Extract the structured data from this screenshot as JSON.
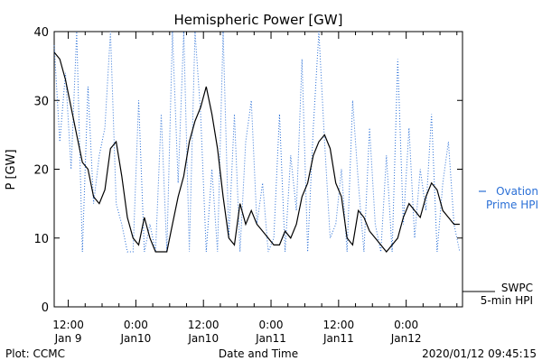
{
  "chart_data": {
    "type": "line",
    "title": "Hemispheric Power [GW]",
    "ylabel": "P [GW]",
    "xlabel": "Date and Time",
    "ylim": [
      0,
      40
    ],
    "yticks": [
      0,
      10,
      20,
      30,
      40
    ],
    "xlim": [
      "2020-01-09 09:30",
      "2020-01-12 10:00"
    ],
    "xticks": [
      {
        "t": "2020-01-09 12:00",
        "line1": "12:00",
        "line2": "Jan 9"
      },
      {
        "t": "2020-01-10 00:00",
        "line1": "0:00",
        "line2": "Jan10"
      },
      {
        "t": "2020-01-10 12:00",
        "line1": "12:00",
        "line2": "Jan10"
      },
      {
        "t": "2020-01-11 00:00",
        "line1": "0:00",
        "line2": "Jan11"
      },
      {
        "t": "2020-01-11 12:00",
        "line1": "12:00",
        "line2": "Jan11"
      },
      {
        "t": "2020-01-12 00:00",
        "line1": "0:00",
        "line2": "Jan12"
      }
    ],
    "grid": false,
    "legend_position": "right",
    "series": [
      {
        "name": "Ovation Prime HPI",
        "legend_lines": [
          "Ovation",
          "Prime HPI"
        ],
        "style": "dotted",
        "color": "#2a6fd6",
        "x": [
          "2020-01-09 09:30",
          "2020-01-09 10:30",
          "2020-01-09 11:30",
          "2020-01-09 12:30",
          "2020-01-09 13:30",
          "2020-01-09 14:30",
          "2020-01-09 15:30",
          "2020-01-09 16:30",
          "2020-01-09 17:30",
          "2020-01-09 18:30",
          "2020-01-09 19:30",
          "2020-01-09 20:30",
          "2020-01-09 21:30",
          "2020-01-09 22:30",
          "2020-01-09 23:30",
          "2020-01-10 00:30",
          "2020-01-10 01:30",
          "2020-01-10 02:30",
          "2020-01-10 03:30",
          "2020-01-10 04:30",
          "2020-01-10 05:30",
          "2020-01-10 06:30",
          "2020-01-10 07:30",
          "2020-01-10 08:30",
          "2020-01-10 09:30",
          "2020-01-10 10:30",
          "2020-01-10 11:30",
          "2020-01-10 12:30",
          "2020-01-10 13:30",
          "2020-01-10 14:30",
          "2020-01-10 15:30",
          "2020-01-10 16:30",
          "2020-01-10 17:30",
          "2020-01-10 18:30",
          "2020-01-10 19:30",
          "2020-01-10 20:30",
          "2020-01-10 21:30",
          "2020-01-10 22:30",
          "2020-01-10 23:30",
          "2020-01-11 00:30",
          "2020-01-11 01:30",
          "2020-01-11 02:30",
          "2020-01-11 03:30",
          "2020-01-11 04:30",
          "2020-01-11 05:30",
          "2020-01-11 06:30",
          "2020-01-11 07:30",
          "2020-01-11 08:30",
          "2020-01-11 09:30",
          "2020-01-11 10:30",
          "2020-01-11 11:30",
          "2020-01-11 12:30",
          "2020-01-11 13:30",
          "2020-01-11 14:30",
          "2020-01-11 15:30",
          "2020-01-11 16:30",
          "2020-01-11 17:30",
          "2020-01-11 18:30",
          "2020-01-11 19:30",
          "2020-01-11 20:30",
          "2020-01-11 21:30",
          "2020-01-11 22:30",
          "2020-01-11 23:30",
          "2020-01-12 00:30",
          "2020-01-12 01:30",
          "2020-01-12 02:30",
          "2020-01-12 03:30",
          "2020-01-12 04:30",
          "2020-01-12 05:30",
          "2020-01-12 06:30",
          "2020-01-12 07:30",
          "2020-01-12 08:30",
          "2020-01-12 09:30"
        ],
        "values": [
          38,
          24,
          34,
          20,
          40,
          8,
          32,
          15,
          22,
          26,
          40,
          15,
          12,
          8,
          8,
          30,
          8,
          12,
          8,
          28,
          8,
          40,
          18,
          40,
          8,
          40,
          28,
          8,
          20,
          8,
          40,
          10,
          28,
          8,
          24,
          30,
          12,
          18,
          8,
          10,
          28,
          8,
          22,
          14,
          36,
          8,
          26,
          40,
          24,
          10,
          12,
          20,
          8,
          30,
          18,
          8,
          26,
          12,
          8,
          22,
          8,
          36,
          12,
          26,
          10,
          20,
          14,
          28,
          8,
          18,
          24,
          12,
          8
        ]
      },
      {
        "name": "SWPC 5-min HPI",
        "legend_lines": [
          "SWPC",
          "5-min HPI"
        ],
        "style": "solid",
        "color": "#000000",
        "x": [
          "2020-01-09 09:30",
          "2020-01-09 10:30",
          "2020-01-09 11:30",
          "2020-01-09 12:30",
          "2020-01-09 13:30",
          "2020-01-09 14:30",
          "2020-01-09 15:30",
          "2020-01-09 16:30",
          "2020-01-09 17:30",
          "2020-01-09 18:30",
          "2020-01-09 19:30",
          "2020-01-09 20:30",
          "2020-01-09 21:30",
          "2020-01-09 22:30",
          "2020-01-09 23:30",
          "2020-01-10 00:30",
          "2020-01-10 01:30",
          "2020-01-10 02:30",
          "2020-01-10 03:30",
          "2020-01-10 04:30",
          "2020-01-10 05:30",
          "2020-01-10 06:30",
          "2020-01-10 07:30",
          "2020-01-10 08:30",
          "2020-01-10 09:30",
          "2020-01-10 10:30",
          "2020-01-10 11:30",
          "2020-01-10 12:30",
          "2020-01-10 13:30",
          "2020-01-10 14:30",
          "2020-01-10 15:30",
          "2020-01-10 16:30",
          "2020-01-10 17:30",
          "2020-01-10 18:30",
          "2020-01-10 19:30",
          "2020-01-10 20:30",
          "2020-01-10 21:30",
          "2020-01-10 22:30",
          "2020-01-10 23:30",
          "2020-01-11 00:30",
          "2020-01-11 01:30",
          "2020-01-11 02:30",
          "2020-01-11 03:30",
          "2020-01-11 04:30",
          "2020-01-11 05:30",
          "2020-01-11 06:30",
          "2020-01-11 07:30",
          "2020-01-11 08:30",
          "2020-01-11 09:30",
          "2020-01-11 10:30",
          "2020-01-11 11:30",
          "2020-01-11 12:30",
          "2020-01-11 13:30",
          "2020-01-11 14:30",
          "2020-01-11 15:30",
          "2020-01-11 16:30",
          "2020-01-11 17:30",
          "2020-01-11 18:30",
          "2020-01-11 19:30",
          "2020-01-11 20:30",
          "2020-01-11 21:30",
          "2020-01-11 22:30",
          "2020-01-11 23:30",
          "2020-01-12 00:30",
          "2020-01-12 01:30",
          "2020-01-12 02:30",
          "2020-01-12 03:30",
          "2020-01-12 04:30",
          "2020-01-12 05:30",
          "2020-01-12 06:30",
          "2020-01-12 07:30",
          "2020-01-12 08:30",
          "2020-01-12 09:30"
        ],
        "values": [
          37,
          36,
          33,
          29,
          25,
          21,
          20,
          16,
          15,
          17,
          23,
          24,
          19,
          13,
          10,
          9,
          13,
          10,
          8,
          8,
          8,
          12,
          16,
          19,
          24,
          27,
          29,
          32,
          28,
          23,
          16,
          10,
          9,
          15,
          12,
          14,
          12,
          11,
          10,
          9,
          9,
          11,
          10,
          12,
          16,
          18,
          22,
          24,
          25,
          23,
          18,
          16,
          10,
          9,
          14,
          13,
          11,
          10,
          9,
          8,
          9,
          10,
          13,
          15,
          14,
          13,
          16,
          18,
          17,
          14,
          13,
          12,
          12
        ]
      }
    ]
  },
  "footer": {
    "left": "Plot: CCMC",
    "center": "Date and Time",
    "right": "2020/01/12 09:45:15"
  }
}
